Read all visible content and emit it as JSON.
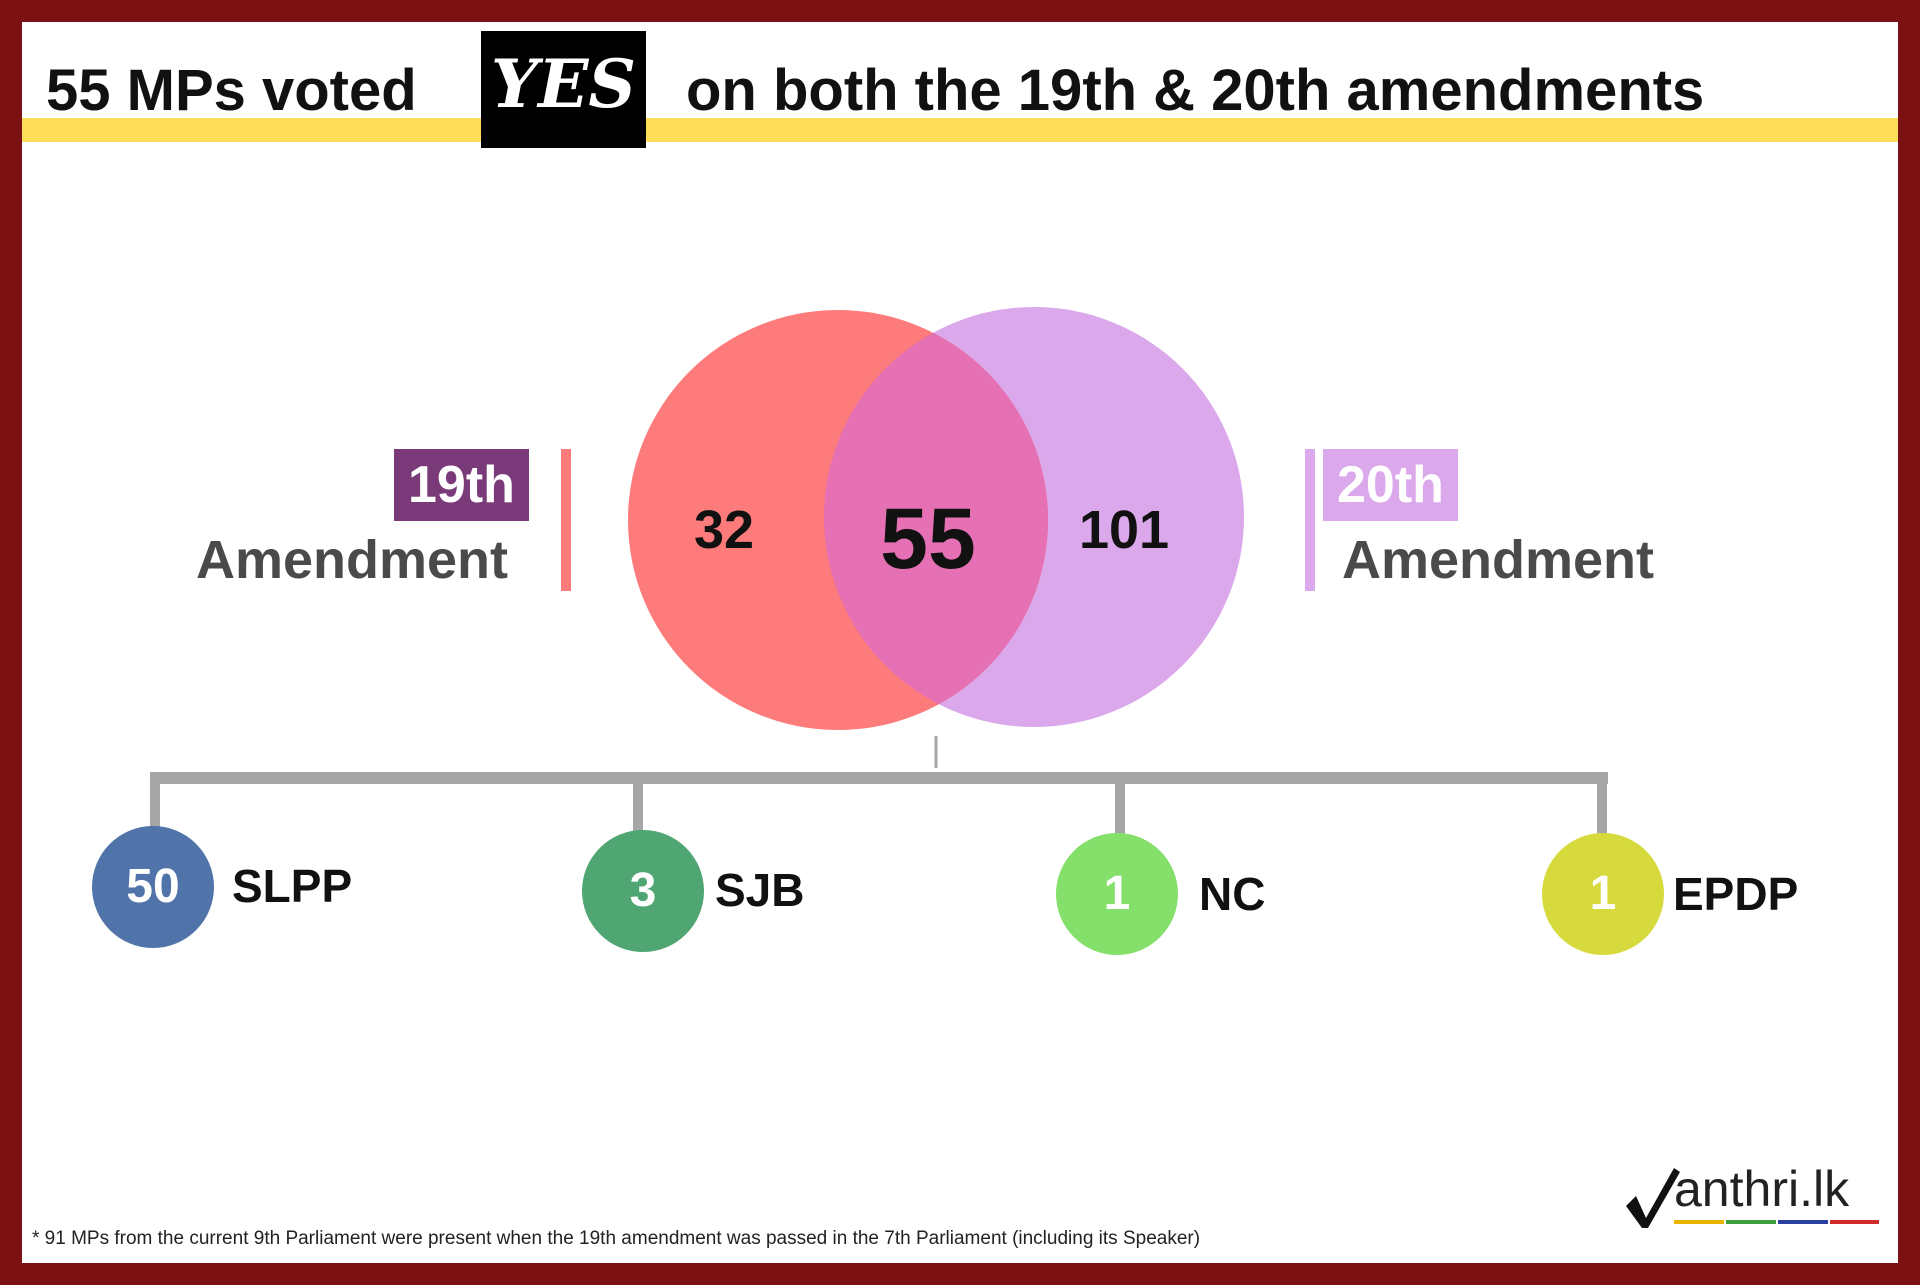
{
  "header": {
    "title_before": "55 MPs voted",
    "yes_word": "YES",
    "title_after": "on both the 19th & 20th amendments"
  },
  "venn": {
    "left": {
      "badge": "19th",
      "label": "Amendment",
      "value": "32",
      "color": "#fd7b7b"
    },
    "overlap": {
      "value": "55",
      "color": "#e570b4"
    },
    "right": {
      "badge": "20th",
      "label": "Amendment",
      "value": "101",
      "color": "#dba8ec"
    }
  },
  "parties": [
    {
      "count": "50",
      "name": "SLPP",
      "color": "#5073a9"
    },
    {
      "count": "3",
      "name": "SJB",
      "color": "#4fa673"
    },
    {
      "count": "1",
      "name": "NC",
      "color": "#84e06a"
    },
    {
      "count": "1",
      "name": "EPDP",
      "color": "#d6da3d"
    }
  ],
  "footnote": "* 91 MPs from the current 9th Parliament  were present when the 19th amendment was passed in the 7th Parliament (including its Speaker)",
  "logo": {
    "text": "anthri.lk",
    "icon": "checkmark-m-logo",
    "underline_colors": [
      "#e8b400",
      "#3f9f3f",
      "#2b3f9f",
      "#d02a2a"
    ]
  }
}
